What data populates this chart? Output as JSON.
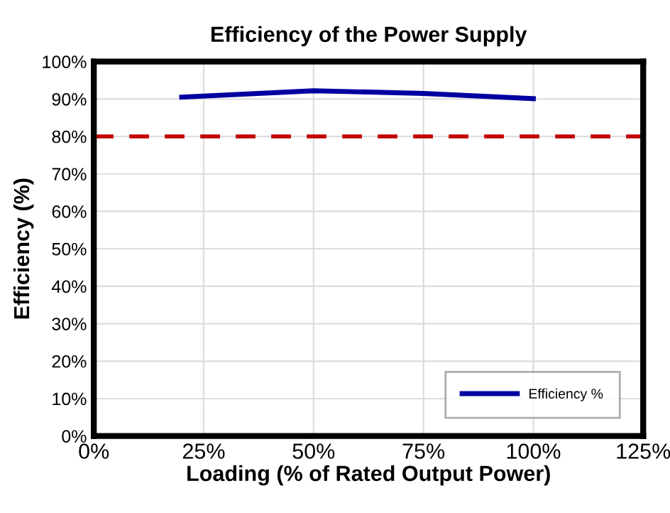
{
  "chart_data": {
    "type": "line",
    "title": "Efficiency of the Power Supply",
    "xlabel": "Loading (% of Rated Output Power)",
    "ylabel": "Efficiency (%)",
    "x": [
      20,
      50,
      75,
      100
    ],
    "series": [
      {
        "name": "Efficiency %",
        "color": "#0000a0",
        "values": [
          90.5,
          92.2,
          91.5,
          90.1
        ]
      }
    ],
    "xlim": [
      0,
      125
    ],
    "ylim": [
      0,
      100
    ],
    "xticks": [
      {
        "value": 0,
        "label": "0%"
      },
      {
        "value": 25,
        "label": "25%"
      },
      {
        "value": 50,
        "label": "50%"
      },
      {
        "value": 75,
        "label": "75%"
      },
      {
        "value": 100,
        "label": "100%"
      },
      {
        "value": 125,
        "label": "125%"
      }
    ],
    "yticks": [
      {
        "value": 0,
        "label": "0%"
      },
      {
        "value": 10,
        "label": "10%"
      },
      {
        "value": 20,
        "label": "20%"
      },
      {
        "value": 30,
        "label": "30%"
      },
      {
        "value": 40,
        "label": "40%"
      },
      {
        "value": 50,
        "label": "50%"
      },
      {
        "value": 60,
        "label": "60%"
      },
      {
        "value": 70,
        "label": "70%"
      },
      {
        "value": 80,
        "label": "80%"
      },
      {
        "value": 90,
        "label": "90%"
      },
      {
        "value": 100,
        "label": "100%"
      }
    ],
    "ref_lines": [
      {
        "axis": "y",
        "value": 80,
        "label": null,
        "color": "#c00000",
        "line_style": "dashed"
      }
    ],
    "grid": true,
    "legend": "bottom right",
    "marker": "none",
    "line_style": "solid"
  }
}
